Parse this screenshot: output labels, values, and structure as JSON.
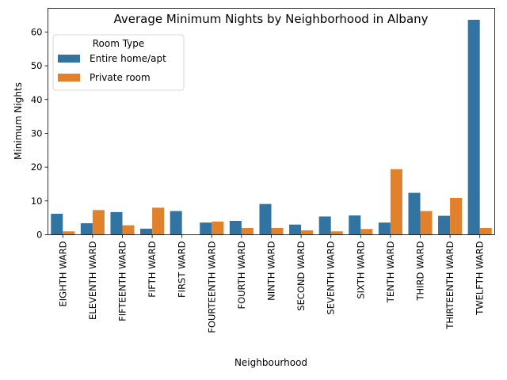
{
  "chart_data": {
    "type": "bar",
    "title": "Average Minimum Nights by Neighborhood in Albany",
    "xlabel": "Neighbourhood",
    "ylabel": "Minimum Nights",
    "ylim": [
      0,
      67
    ],
    "yticks": [
      0,
      10,
      20,
      30,
      40,
      50,
      60
    ],
    "legend": {
      "title": "Room Type",
      "placement": "top-left"
    },
    "categories": [
      "EIGHTH WARD",
      "ELEVENTH WARD",
      "FIFTEENTH WARD",
      "FIFTH WARD",
      "FIRST WARD",
      "FOURTEENTH WARD",
      "FOURTH WARD",
      "NINTH WARD",
      "SECOND WARD",
      "SEVENTH WARD",
      "SIXTH WARD",
      "TENTH WARD",
      "THIRD WARD",
      "THIRTEENTH WARD",
      "TWELFTH WARD"
    ],
    "series": [
      {
        "name": "Entire home/apt",
        "color": "#3274a1",
        "values": [
          6.2,
          3.4,
          6.7,
          1.8,
          7.0,
          3.6,
          4.1,
          9.1,
          3.0,
          5.4,
          5.7,
          3.6,
          12.4,
          5.6,
          63.6
        ]
      },
      {
        "name": "Private room",
        "color": "#e1812c",
        "values": [
          1.0,
          7.3,
          2.8,
          8.0,
          null,
          3.9,
          2.0,
          2.0,
          1.3,
          1.0,
          1.7,
          19.4,
          7.0,
          10.9,
          2.0
        ]
      }
    ]
  }
}
